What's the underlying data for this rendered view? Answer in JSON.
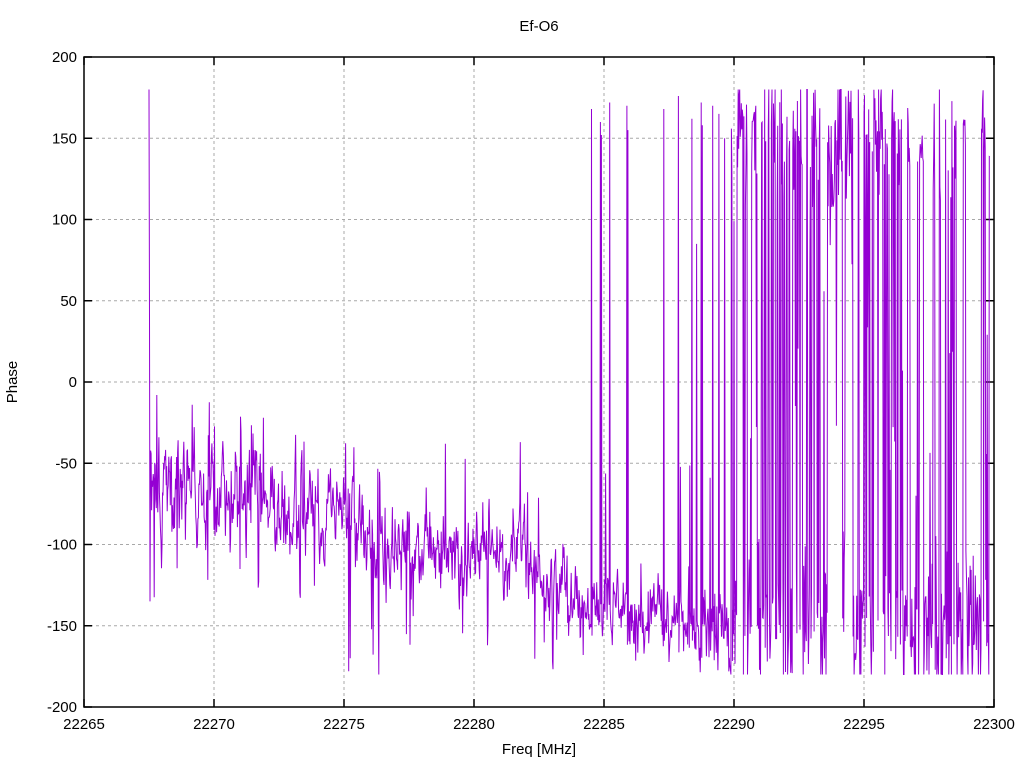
{
  "chart_data": {
    "type": "line",
    "title": "Ef-O6",
    "xlabel": "Freq [MHz]",
    "ylabel": "Phase",
    "x_range": [
      22265,
      22300
    ],
    "y_range": [
      -200,
      200
    ],
    "x_ticks": [
      22265,
      22270,
      22275,
      22280,
      22285,
      22290,
      22295,
      22300
    ],
    "x_tick_labels": [
      "22265",
      "22270",
      "22275",
      "22280",
      "22285",
      "22290",
      "22295",
      "22300"
    ],
    "y_ticks": [
      -200,
      -150,
      -100,
      -50,
      0,
      50,
      100,
      150,
      200
    ],
    "y_tick_labels": [
      "-200",
      "-150",
      "-100",
      "-50",
      "0",
      "50",
      "100",
      "150",
      "200"
    ],
    "grid": true,
    "legend": "none",
    "line_color": "#9400d3",
    "grid_color": "#a8a8a8",
    "background": "#ffffff",
    "sample_step_mhz": 0.02,
    "data_start_mhz": 22267.5,
    "data_end_mhz": 22299.84,
    "seed": 20240917,
    "segments": [
      {
        "mode": "band",
        "from": 22267.56,
        "to": 22272.0,
        "mean_start": -66,
        "mean_end": -70,
        "std": 16,
        "spike_up_p": 0.02,
        "spike_up": [
          -32,
          -12
        ],
        "spike_dn_p": 0.02,
        "spike_dn": [
          -138,
          -112
        ]
      },
      {
        "mode": "band",
        "from": 22272.0,
        "to": 22275.4,
        "mean_start": -78,
        "mean_end": -86,
        "std": 15,
        "spike_up_p": 0.015,
        "spike_up": [
          -45,
          -25
        ],
        "spike_dn_p": 0.02,
        "spike_dn": [
          -145,
          -118
        ]
      },
      {
        "mode": "band",
        "from": 22275.4,
        "to": 22279.0,
        "mean_start": -98,
        "mean_end": -106,
        "std": 14,
        "spike_up_p": 0.012,
        "spike_up": [
          -58,
          -38
        ],
        "spike_dn_p": 0.02,
        "spike_dn": [
          -172,
          -142
        ]
      },
      {
        "mode": "band",
        "from": 22279.0,
        "to": 22282.0,
        "mean_start": -102,
        "mean_end": -100,
        "std": 13,
        "spike_up_p": 0.01,
        "spike_up": [
          -62,
          -40
        ],
        "spike_dn_p": 0.02,
        "spike_dn": [
          -170,
          -145
        ]
      },
      {
        "mode": "band",
        "from": 22282.0,
        "to": 22284.45,
        "mean_start": -114,
        "mean_end": -136,
        "std": 12,
        "spike_up_p": 0.008,
        "spike_up": [
          -80,
          -60
        ],
        "spike_dn_p": 0.03,
        "spike_dn": [
          -178,
          -152
        ]
      },
      {
        "mode": "wraps",
        "from": 22284.45,
        "to": 22287.25,
        "mean_start": -138,
        "mean_end": -144,
        "std": 11,
        "spike_up_p": 0.01,
        "spike_up": [
          -80,
          -55
        ],
        "spike_dn_p": 0.04,
        "spike_dn": [
          -178,
          -155
        ],
        "wrap_points": [
          [
            22284.52,
            168
          ],
          [
            22284.86,
            160
          ],
          [
            22284.9,
            152
          ],
          [
            22285.22,
            172
          ],
          [
            22285.88,
            170
          ],
          [
            22285.92,
            155
          ]
        ]
      },
      {
        "mode": "wraps",
        "from": 22287.25,
        "to": 22289.9,
        "mean_start": -148,
        "mean_end": -156,
        "std": 12,
        "spike_up_p": 0.015,
        "spike_up": [
          -85,
          -45
        ],
        "spike_dn_p": 0.05,
        "spike_dn": [
          -180,
          -160
        ],
        "wrap_points": [
          [
            22287.3,
            168
          ],
          [
            22287.86,
            176
          ],
          [
            22288.38,
            162
          ],
          [
            22288.56,
            85
          ],
          [
            22288.74,
            172
          ],
          [
            22288.78,
            158
          ],
          [
            22289.18,
            170
          ],
          [
            22289.42,
            165
          ],
          [
            22289.64,
            150
          ]
        ]
      },
      {
        "mode": "chaos",
        "from": 22289.9,
        "to": 22299.85,
        "switch_p": 0.34,
        "p_mid": 0.045,
        "mid_range": [
          -95,
          60
        ],
        "up_mean": 152,
        "up_std": 22,
        "up_clamp": [
          60,
          180
        ],
        "dn_mean": -150,
        "dn_std": 26,
        "dn_clamp": [
          -180,
          -70
        ],
        "calm_zones": [
          {
            "from": 22293.5,
            "to": 22294.9,
            "switch_p": 0.1,
            "up_mean": 136,
            "up_std": 26
          },
          {
            "from": 22296.5,
            "to": 22298.1,
            "switch_p": 0.16,
            "up_mean": 140,
            "up_std": 24
          },
          {
            "from": 22298.5,
            "to": 22299.5,
            "switch_p": 0.12,
            "up_mean": 156,
            "up_std": 14
          }
        ]
      }
    ],
    "events": [
      [
        22267.5,
        180
      ],
      [
        22267.52,
        40
      ],
      [
        22267.54,
        -135
      ],
      [
        22267.8,
        -8
      ],
      [
        22269.15,
        -14
      ],
      [
        22271.9,
        -22
      ],
      [
        22275.18,
        -178
      ],
      [
        22275.24,
        -170
      ],
      [
        22276.34,
        -180
      ],
      [
        22278.9,
        -38
      ],
      [
        22281.78,
        -37
      ],
      [
        22283.02,
        -172
      ],
      [
        22284.2,
        -168
      ]
    ]
  }
}
